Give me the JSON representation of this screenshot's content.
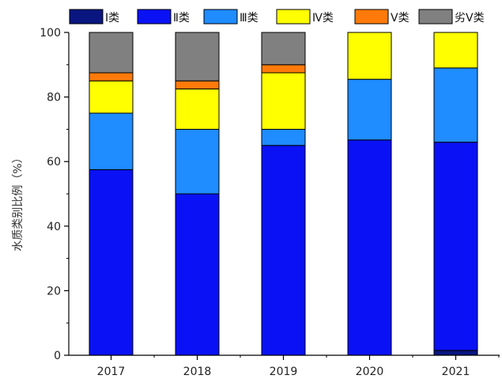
{
  "chart_data": {
    "type": "bar",
    "stacked": true,
    "categories": [
      "2017",
      "2018",
      "2019",
      "2020",
      "2021"
    ],
    "series": [
      {
        "name": "Ⅰ类",
        "color": "#0a1680",
        "values": [
          0,
          0,
          0,
          0,
          1.5
        ]
      },
      {
        "name": "Ⅱ类",
        "color": "#0a12f5",
        "values": [
          57.5,
          50.0,
          65.0,
          66.7,
          64.5
        ]
      },
      {
        "name": "Ⅲ类",
        "color": "#1f8cff",
        "values": [
          17.5,
          20.0,
          5.0,
          18.8,
          23.0
        ]
      },
      {
        "name": "Ⅳ类",
        "color": "#ffff00",
        "values": [
          10.0,
          12.5,
          17.5,
          14.5,
          11.0
        ]
      },
      {
        "name": "Ⅴ类",
        "color": "#ff7a0a",
        "values": [
          2.5,
          2.5,
          2.5,
          0,
          0
        ]
      },
      {
        "name": "劣Ⅴ类",
        "color": "#808080",
        "values": [
          12.5,
          15.0,
          10.0,
          0,
          0
        ]
      }
    ],
    "xlabel": "",
    "ylabel": "水质类别比例（%）",
    "ylim": [
      0,
      100
    ],
    "yticks": [
      0,
      20,
      40,
      60,
      80,
      100
    ],
    "grid": false,
    "legend": "top"
  }
}
